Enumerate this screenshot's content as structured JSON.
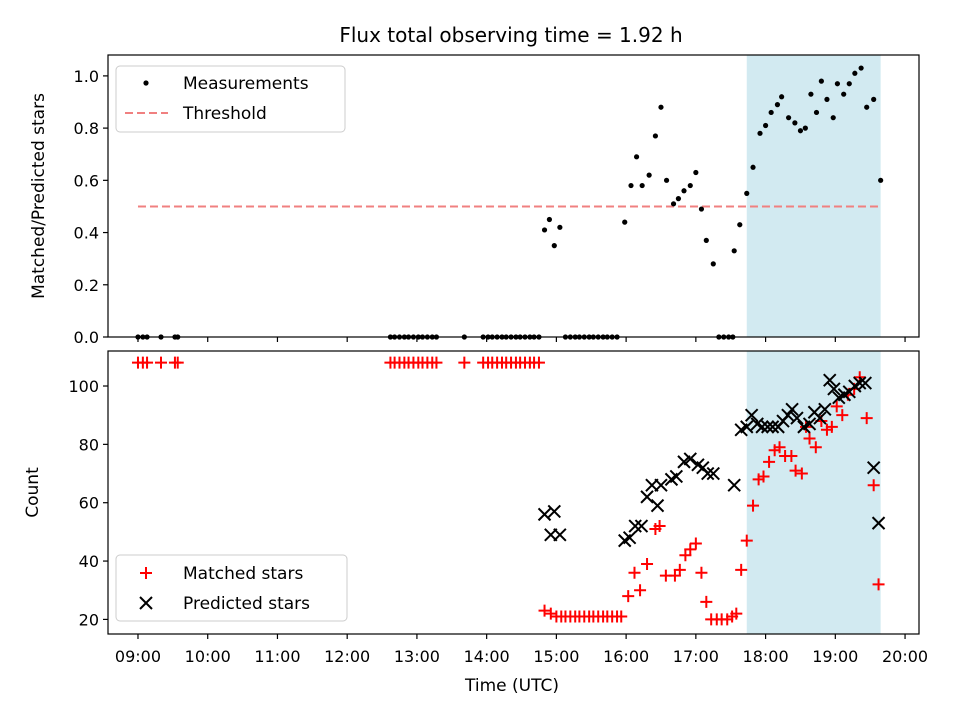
{
  "chart_data": [
    {
      "type": "scatter",
      "title": "Flux total observing time = 1.92 h",
      "xlabel": "",
      "ylabel": "Matched/Predicted stars",
      "xlim": [
        8.57,
        20.2
      ],
      "ylim": [
        0,
        1.08
      ],
      "yticks": [
        0,
        0.2,
        0.4,
        0.6,
        0.8,
        1.0
      ],
      "ytick_labels": [
        "0.0",
        "0.2",
        "0.4",
        "0.6",
        "0.8",
        "1.0"
      ],
      "highlight": {
        "x0": 17.73,
        "x1": 19.65,
        "color": "#add8e6"
      },
      "legend_position": "upper-left",
      "series": [
        {
          "name": "Measurements",
          "color": "#000000",
          "marker": "dot",
          "points": [
            [
              9.0,
              0
            ],
            [
              9.07,
              0
            ],
            [
              9.13,
              0
            ],
            [
              9.33,
              0
            ],
            [
              9.53,
              0
            ],
            [
              9.57,
              0
            ],
            [
              12.62,
              0
            ],
            [
              12.68,
              0
            ],
            [
              12.75,
              0
            ],
            [
              12.82,
              0
            ],
            [
              12.88,
              0
            ],
            [
              12.95,
              0
            ],
            [
              13.02,
              0
            ],
            [
              13.08,
              0
            ],
            [
              13.15,
              0
            ],
            [
              13.22,
              0
            ],
            [
              13.28,
              0
            ],
            [
              13.68,
              0
            ],
            [
              13.95,
              0
            ],
            [
              14.02,
              0
            ],
            [
              14.08,
              0
            ],
            [
              14.15,
              0
            ],
            [
              14.22,
              0
            ],
            [
              14.28,
              0
            ],
            [
              14.35,
              0
            ],
            [
              14.42,
              0
            ],
            [
              14.48,
              0
            ],
            [
              14.55,
              0
            ],
            [
              14.62,
              0
            ],
            [
              14.68,
              0
            ],
            [
              14.75,
              0
            ],
            [
              15.13,
              0
            ],
            [
              15.2,
              0
            ],
            [
              15.27,
              0
            ],
            [
              15.33,
              0
            ],
            [
              15.4,
              0
            ],
            [
              15.47,
              0
            ],
            [
              15.53,
              0
            ],
            [
              15.6,
              0
            ],
            [
              15.67,
              0
            ],
            [
              15.73,
              0
            ],
            [
              15.8,
              0
            ],
            [
              15.87,
              0
            ],
            [
              17.33,
              0
            ],
            [
              17.4,
              0
            ],
            [
              17.47,
              0
            ],
            [
              17.53,
              0
            ],
            [
              14.83,
              0.41
            ],
            [
              14.9,
              0.45
            ],
            [
              14.97,
              0.35
            ],
            [
              15.05,
              0.42
            ],
            [
              15.98,
              0.44
            ],
            [
              16.07,
              0.58
            ],
            [
              16.15,
              0.69
            ],
            [
              16.23,
              0.58
            ],
            [
              16.33,
              0.62
            ],
            [
              16.42,
              0.77
            ],
            [
              16.5,
              0.88
            ],
            [
              16.58,
              0.6
            ],
            [
              16.68,
              0.51
            ],
            [
              16.75,
              0.53
            ],
            [
              16.83,
              0.56
            ],
            [
              16.92,
              0.58
            ],
            [
              17.0,
              0.63
            ],
            [
              17.08,
              0.49
            ],
            [
              17.15,
              0.37
            ],
            [
              17.25,
              0.28
            ],
            [
              17.55,
              0.33
            ],
            [
              17.63,
              0.43
            ],
            [
              17.73,
              0.55
            ],
            [
              17.82,
              0.65
            ],
            [
              17.92,
              0.78
            ],
            [
              18.0,
              0.81
            ],
            [
              18.08,
              0.86
            ],
            [
              18.17,
              0.89
            ],
            [
              18.23,
              0.92
            ],
            [
              18.33,
              0.84
            ],
            [
              18.42,
              0.82
            ],
            [
              18.5,
              0.79
            ],
            [
              18.57,
              0.8
            ],
            [
              18.65,
              0.93
            ],
            [
              18.73,
              0.86
            ],
            [
              18.8,
              0.98
            ],
            [
              18.88,
              0.91
            ],
            [
              18.97,
              0.84
            ],
            [
              19.03,
              0.97
            ],
            [
              19.12,
              0.93
            ],
            [
              19.2,
              0.97
            ],
            [
              19.28,
              1.01
            ],
            [
              19.37,
              1.03
            ],
            [
              19.45,
              0.88
            ],
            [
              19.55,
              0.91
            ],
            [
              19.65,
              0.6
            ]
          ]
        },
        {
          "name": "Threshold",
          "color": "#f08080",
          "marker": "dashed-line",
          "x": [
            9.0,
            19.65
          ],
          "y": [
            0.5,
            0.5
          ]
        }
      ]
    },
    {
      "type": "scatter",
      "title": "",
      "xlabel": "Time (UTC)",
      "ylabel": "Count",
      "xlim": [
        8.57,
        20.2
      ],
      "ylim": [
        15,
        112
      ],
      "xticks": [
        9,
        10,
        11,
        12,
        13,
        14,
        15,
        16,
        17,
        18,
        19,
        20
      ],
      "xtick_labels": [
        "09:00",
        "10:00",
        "11:00",
        "12:00",
        "13:00",
        "14:00",
        "15:00",
        "16:00",
        "17:00",
        "18:00",
        "19:00",
        "20:00"
      ],
      "yticks": [
        20,
        40,
        60,
        80,
        100
      ],
      "ytick_labels": [
        "20",
        "40",
        "60",
        "80",
        "100"
      ],
      "highlight": {
        "x0": 17.73,
        "x1": 19.65,
        "color": "#add8e6"
      },
      "legend_position": "lower-left",
      "series": [
        {
          "name": "Matched stars",
          "color": "#ff0000",
          "marker": "plus",
          "points": [
            [
              9.0,
              108
            ],
            [
              9.07,
              108
            ],
            [
              9.13,
              108
            ],
            [
              9.33,
              108
            ],
            [
              9.53,
              108
            ],
            [
              9.57,
              108
            ],
            [
              12.62,
              108
            ],
            [
              12.68,
              108
            ],
            [
              12.75,
              108
            ],
            [
              12.82,
              108
            ],
            [
              12.88,
              108
            ],
            [
              12.95,
              108
            ],
            [
              13.02,
              108
            ],
            [
              13.08,
              108
            ],
            [
              13.15,
              108
            ],
            [
              13.22,
              108
            ],
            [
              13.28,
              108
            ],
            [
              13.68,
              108
            ],
            [
              13.95,
              108
            ],
            [
              14.02,
              108
            ],
            [
              14.08,
              108
            ],
            [
              14.15,
              108
            ],
            [
              14.22,
              108
            ],
            [
              14.28,
              108
            ],
            [
              14.35,
              108
            ],
            [
              14.42,
              108
            ],
            [
              14.48,
              108
            ],
            [
              14.55,
              108
            ],
            [
              14.62,
              108
            ],
            [
              14.68,
              108
            ],
            [
              14.75,
              108
            ],
            [
              14.83,
              23
            ],
            [
              14.92,
              22
            ],
            [
              15.0,
              21
            ],
            [
              15.07,
              21
            ],
            [
              15.13,
              21
            ],
            [
              15.2,
              21
            ],
            [
              15.27,
              21
            ],
            [
              15.33,
              21
            ],
            [
              15.4,
              21
            ],
            [
              15.47,
              21
            ],
            [
              15.53,
              21
            ],
            [
              15.6,
              21
            ],
            [
              15.67,
              21
            ],
            [
              15.73,
              21
            ],
            [
              15.8,
              21
            ],
            [
              15.87,
              21
            ],
            [
              15.93,
              21
            ],
            [
              16.03,
              28
            ],
            [
              16.12,
              36
            ],
            [
              16.2,
              30
            ],
            [
              16.3,
              39
            ],
            [
              16.42,
              51
            ],
            [
              16.48,
              52
            ],
            [
              16.57,
              35
            ],
            [
              16.7,
              35
            ],
            [
              16.77,
              37
            ],
            [
              16.85,
              42
            ],
            [
              16.92,
              44
            ],
            [
              17.0,
              46
            ],
            [
              17.08,
              36
            ],
            [
              17.15,
              26
            ],
            [
              17.22,
              20
            ],
            [
              17.3,
              20
            ],
            [
              17.37,
              20
            ],
            [
              17.45,
              20
            ],
            [
              17.52,
              21
            ],
            [
              17.58,
              22
            ],
            [
              17.65,
              37
            ],
            [
              17.73,
              47
            ],
            [
              17.82,
              59
            ],
            [
              17.9,
              68
            ],
            [
              17.97,
              69
            ],
            [
              18.05,
              74
            ],
            [
              18.13,
              78
            ],
            [
              18.2,
              79
            ],
            [
              18.28,
              76
            ],
            [
              18.37,
              76
            ],
            [
              18.43,
              71
            ],
            [
              18.52,
              70
            ],
            [
              18.58,
              86
            ],
            [
              18.63,
              82
            ],
            [
              18.72,
              79
            ],
            [
              18.8,
              88
            ],
            [
              18.88,
              85
            ],
            [
              18.95,
              86
            ],
            [
              19.02,
              93
            ],
            [
              19.1,
              90
            ],
            [
              19.18,
              97
            ],
            [
              19.27,
              99
            ],
            [
              19.35,
              103
            ],
            [
              19.45,
              89
            ],
            [
              19.55,
              66
            ],
            [
              19.62,
              32
            ]
          ]
        },
        {
          "name": "Predicted stars",
          "color": "#000000",
          "marker": "x",
          "points": [
            [
              14.83,
              56
            ],
            [
              14.92,
              49
            ],
            [
              14.97,
              57
            ],
            [
              15.05,
              49
            ],
            [
              15.98,
              47
            ],
            [
              16.05,
              48
            ],
            [
              16.13,
              52
            ],
            [
              16.22,
              52
            ],
            [
              16.3,
              62
            ],
            [
              16.37,
              66
            ],
            [
              16.45,
              59
            ],
            [
              16.5,
              66
            ],
            [
              16.65,
              68
            ],
            [
              16.72,
              69
            ],
            [
              16.83,
              74
            ],
            [
              16.92,
              75
            ],
            [
              17.03,
              73
            ],
            [
              17.1,
              72
            ],
            [
              17.17,
              70
            ],
            [
              17.25,
              70
            ],
            [
              17.55,
              66
            ],
            [
              17.65,
              85
            ],
            [
              17.73,
              86
            ],
            [
              17.8,
              90
            ],
            [
              17.88,
              87
            ],
            [
              17.95,
              86
            ],
            [
              18.03,
              86
            ],
            [
              18.1,
              86
            ],
            [
              18.18,
              86
            ],
            [
              18.25,
              88
            ],
            [
              18.32,
              90
            ],
            [
              18.38,
              92
            ],
            [
              18.45,
              89
            ],
            [
              18.55,
              86
            ],
            [
              18.63,
              87
            ],
            [
              18.7,
              91
            ],
            [
              18.78,
              89
            ],
            [
              18.85,
              92
            ],
            [
              18.92,
              102
            ],
            [
              18.98,
              99
            ],
            [
              19.05,
              96
            ],
            [
              19.13,
              97
            ],
            [
              19.2,
              98
            ],
            [
              19.28,
              100
            ],
            [
              19.35,
              101
            ],
            [
              19.43,
              101
            ],
            [
              19.55,
              72
            ],
            [
              19.62,
              53
            ]
          ]
        }
      ]
    }
  ]
}
